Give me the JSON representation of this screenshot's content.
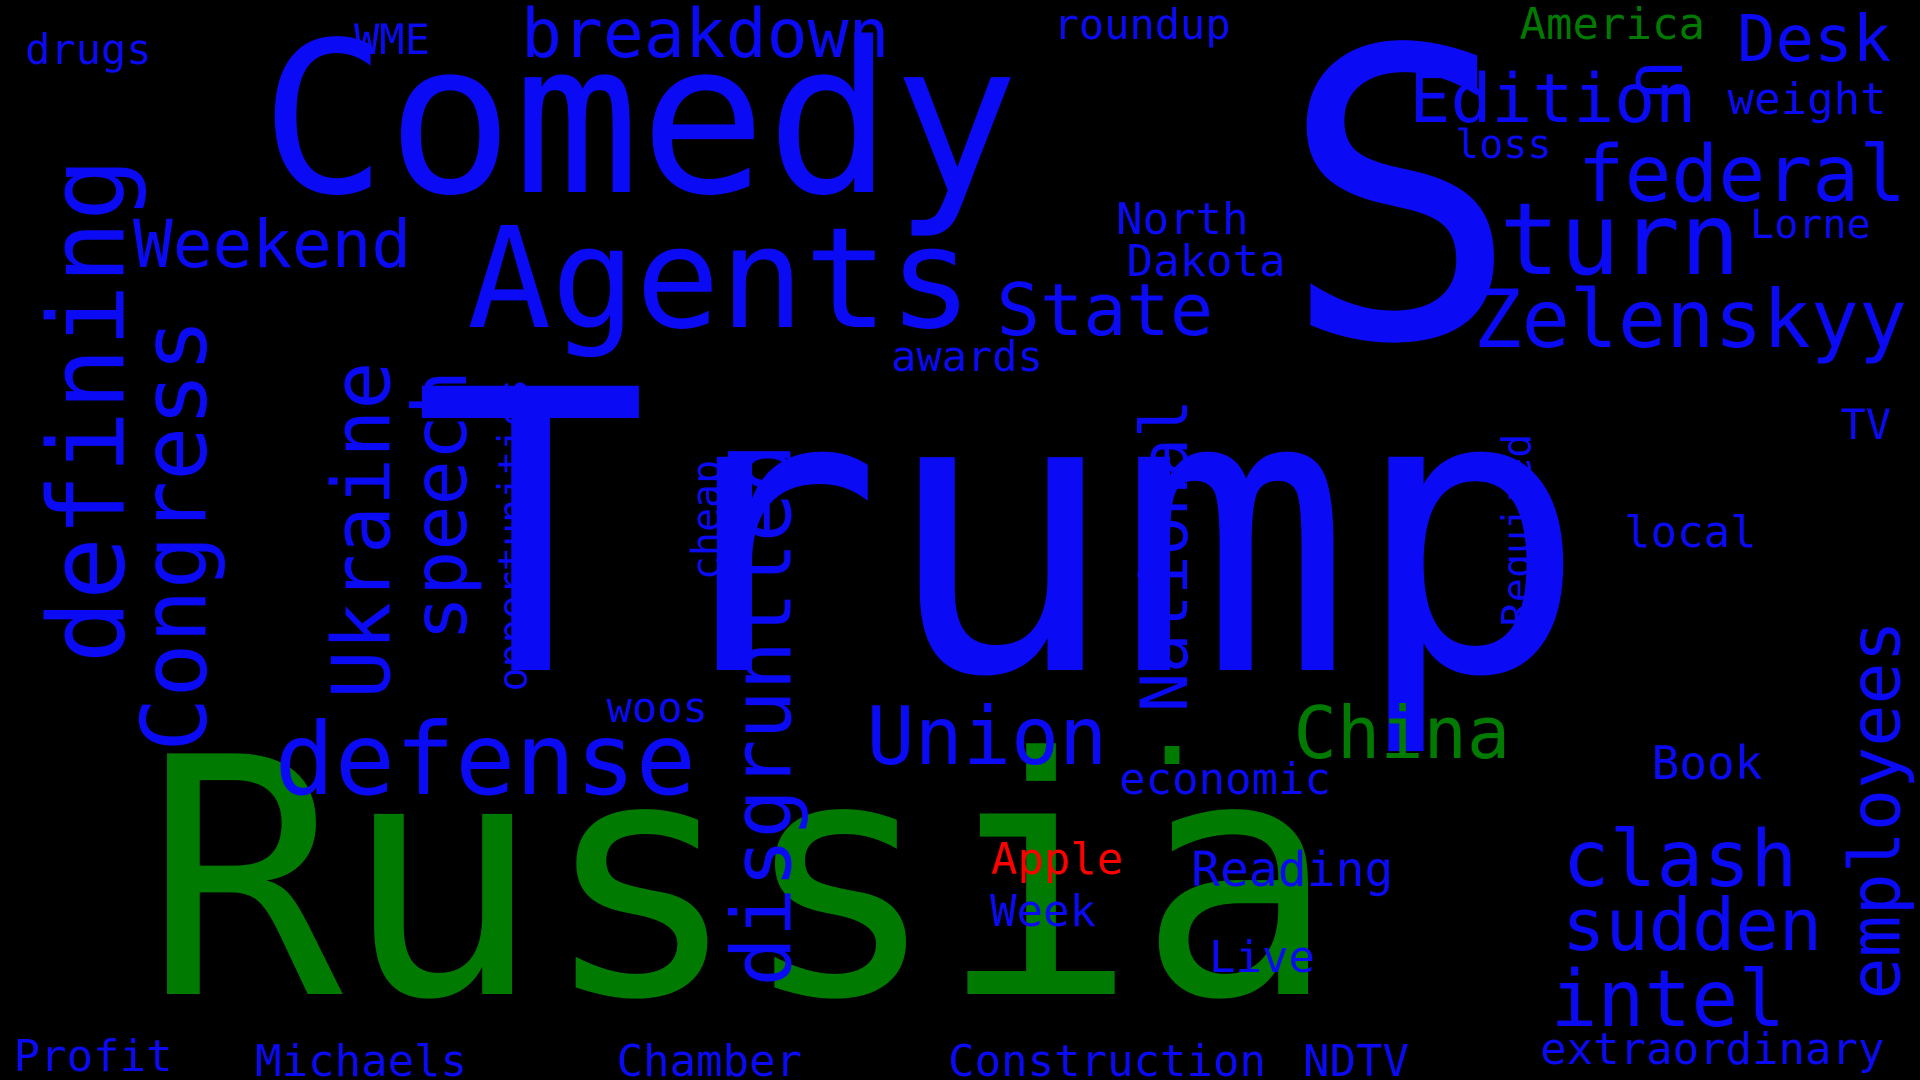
{
  "colors": {
    "background": "#000000",
    "blue": "#0a0af5",
    "green": "#007a00",
    "red": "#ff0000"
  },
  "words": [
    {
      "text": "Trump",
      "color": "blue"
    },
    {
      "text": "Russia",
      "color": "green"
    },
    {
      "text": "S",
      "color": "blue"
    },
    {
      "text": "Comedy",
      "color": "blue"
    },
    {
      "text": "Agents",
      "color": "blue"
    },
    {
      "text": "breakdown",
      "color": "blue"
    },
    {
      "text": "drugs",
      "color": "blue"
    },
    {
      "text": "WME",
      "color": "blue"
    },
    {
      "text": "roundup",
      "color": "blue"
    },
    {
      "text": "America",
      "color": "green"
    },
    {
      "text": "U",
      "color": "blue"
    },
    {
      "text": "Desk",
      "color": "blue"
    },
    {
      "text": "Edition",
      "color": "blue"
    },
    {
      "text": "weight",
      "color": "blue"
    },
    {
      "text": "loss",
      "color": "blue"
    },
    {
      "text": "federal",
      "color": "blue"
    },
    {
      "text": "turn",
      "color": "blue"
    },
    {
      "text": "Lorne",
      "color": "blue"
    },
    {
      "text": "North",
      "color": "blue"
    },
    {
      "text": "Dakota",
      "color": "blue"
    },
    {
      "text": "Weekend",
      "color": "blue"
    },
    {
      "text": "State",
      "color": "blue"
    },
    {
      "text": "Zelenskyy",
      "color": "blue"
    },
    {
      "text": "awards",
      "color": "blue"
    },
    {
      "text": "TV",
      "color": "blue"
    },
    {
      "text": "defining",
      "color": "blue"
    },
    {
      "text": "Congress",
      "color": "blue"
    },
    {
      "text": "Ukraine",
      "color": "blue"
    },
    {
      "text": "speech",
      "color": "blue"
    },
    {
      "text": "opportunities",
      "color": "blue"
    },
    {
      "text": "cheap",
      "color": "blue"
    },
    {
      "text": "disgruntled",
      "color": "blue"
    },
    {
      "text": "National",
      "color": "blue"
    },
    {
      "text": ".",
      "color": "green"
    },
    {
      "text": "Required",
      "color": "blue"
    },
    {
      "text": "local",
      "color": "blue"
    },
    {
      "text": "employees",
      "color": "blue"
    },
    {
      "text": "woos",
      "color": "blue"
    },
    {
      "text": "defense",
      "color": "blue"
    },
    {
      "text": "Union",
      "color": "blue"
    },
    {
      "text": "China",
      "color": "green"
    },
    {
      "text": "economic",
      "color": "blue"
    },
    {
      "text": "Book",
      "color": "blue"
    },
    {
      "text": "Apple",
      "color": "red"
    },
    {
      "text": "Reading",
      "color": "blue"
    },
    {
      "text": "clash",
      "color": "blue"
    },
    {
      "text": "Week",
      "color": "blue"
    },
    {
      "text": "sudden",
      "color": "blue"
    },
    {
      "text": "Live",
      "color": "blue"
    },
    {
      "text": "intel",
      "color": "blue"
    },
    {
      "text": "Profit",
      "color": "blue"
    },
    {
      "text": "Michaels",
      "color": "blue"
    },
    {
      "text": "Chamber",
      "color": "blue"
    },
    {
      "text": "Construction",
      "color": "blue"
    },
    {
      "text": "NDTV",
      "color": "blue"
    },
    {
      "text": "extraordinary",
      "color": "blue"
    }
  ]
}
